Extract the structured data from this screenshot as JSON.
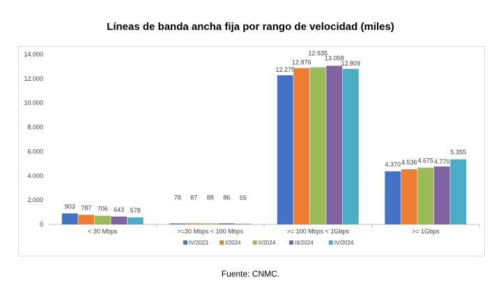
{
  "chart_data": {
    "type": "bar",
    "title": "Líneas de banda ancha fija por rango de velocidad (miles)",
    "source": "Fuente: CNMC.",
    "categories": [
      "< 30 Mbps",
      ">=30 Mbps < 100 Mbps",
      ">= 100 Mbps < 1Gbps",
      ">= 1Gbps"
    ],
    "series": [
      {
        "name": "IV/2023",
        "color": "#4472c4",
        "values": [
          903,
          78,
          12275,
          4370
        ],
        "labels": [
          "903",
          "78",
          "12.275",
          "4.370"
        ]
      },
      {
        "name": "I/2024",
        "color": "#ed7d31",
        "values": [
          787,
          87,
          12876,
          4536
        ],
        "labels": [
          "787",
          "87",
          "12.876",
          "4.536"
        ]
      },
      {
        "name": "II/2024",
        "color": "#9bbb59",
        "values": [
          706,
          88,
          12935,
          4675
        ],
        "labels": [
          "706",
          "88",
          "12.935",
          "4.675"
        ]
      },
      {
        "name": "III/2024",
        "color": "#8064a2",
        "values": [
          643,
          86,
          13058,
          4770
        ],
        "labels": [
          "643",
          "86",
          "13.058",
          "4.770"
        ]
      },
      {
        "name": "IV/2024",
        "color": "#4bacc6",
        "values": [
          578,
          55,
          12809,
          5355
        ],
        "labels": [
          "578",
          "55",
          "12.809",
          "5.355"
        ]
      }
    ],
    "ylim": [
      0,
      14000
    ],
    "yticks": [
      0,
      2000,
      4000,
      6000,
      8000,
      10000,
      12000,
      14000
    ],
    "ytick_labels": [
      "0",
      "2.000",
      "4.000",
      "6.000",
      "8.000",
      "10.000",
      "12.000",
      "14.000"
    ],
    "grid": false,
    "legend": "bottom"
  }
}
